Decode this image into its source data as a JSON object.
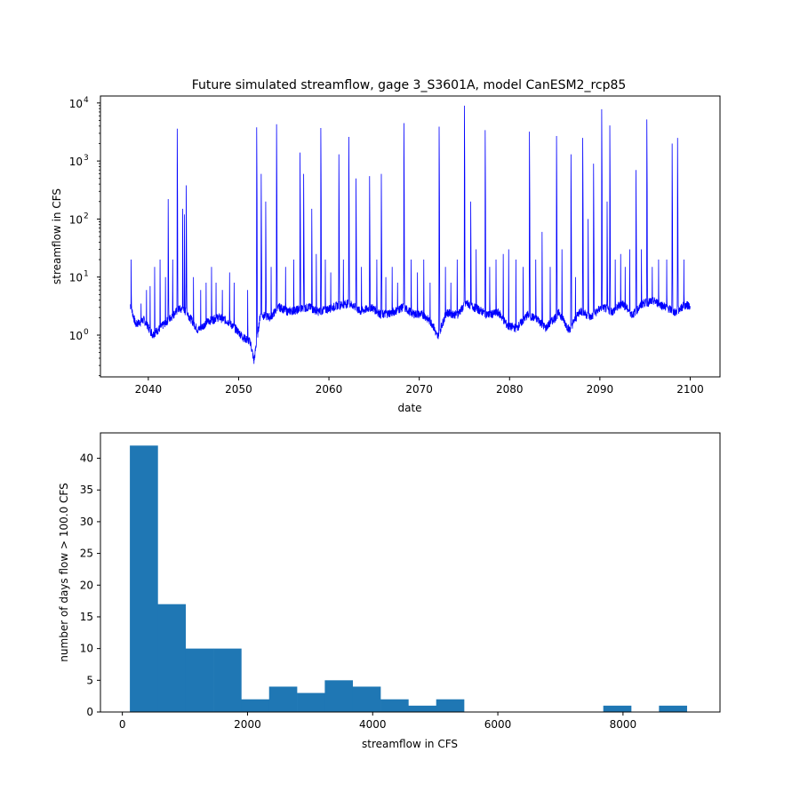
{
  "chart_data": [
    {
      "type": "line",
      "title": "Future simulated streamflow, gage 3_S3601A, model CanESM2_rcp85",
      "xlabel": "date",
      "ylabel": "streamflow in CFS",
      "yscale": "log",
      "x_ticks": [
        "2040",
        "2050",
        "2060",
        "2070",
        "2080",
        "2090",
        "2100"
      ],
      "y_ticks": [
        "10",
        "10",
        "10",
        "10",
        "10"
      ],
      "y_tick_exponents": [
        "0",
        "1",
        "2",
        "3",
        "4"
      ],
      "xlim": [
        2034.7,
        2103.3
      ],
      "ylim_log10": [
        -0.72,
        4.12
      ],
      "line_color": "#0000ff",
      "grid": false,
      "baseline": [
        [
          2038.0,
          3.3
        ],
        [
          2038.6,
          1.5
        ],
        [
          2039.5,
          1.8
        ],
        [
          2040.5,
          1.0
        ],
        [
          2041.3,
          1.3
        ],
        [
          2042.5,
          2.0
        ],
        [
          2043.4,
          2.8
        ],
        [
          2044.2,
          2.5
        ],
        [
          2045.5,
          1.2
        ],
        [
          2046.6,
          1.7
        ],
        [
          2047.8,
          2.0
        ],
        [
          2048.8,
          1.7
        ],
        [
          2049.8,
          1.2
        ],
        [
          2050.5,
          0.9
        ],
        [
          2051.3,
          0.75
        ],
        [
          2051.7,
          0.35
        ],
        [
          2052.4,
          2.2
        ],
        [
          2053.5,
          2.0
        ],
        [
          2054.5,
          3.0
        ],
        [
          2055.5,
          2.5
        ],
        [
          2056.6,
          2.7
        ],
        [
          2057.8,
          3.0
        ],
        [
          2058.8,
          2.5
        ],
        [
          2060.0,
          2.8
        ],
        [
          2061.0,
          3.2
        ],
        [
          2062.3,
          3.5
        ],
        [
          2063.5,
          2.5
        ],
        [
          2064.7,
          3.0
        ],
        [
          2065.8,
          2.2
        ],
        [
          2067.0,
          2.4
        ],
        [
          2068.2,
          3.0
        ],
        [
          2069.3,
          2.3
        ],
        [
          2070.5,
          2.2
        ],
        [
          2071.5,
          1.5
        ],
        [
          2072.0,
          0.9
        ],
        [
          2073.0,
          2.4
        ],
        [
          2074.2,
          2.2
        ],
        [
          2075.2,
          3.5
        ],
        [
          2076.4,
          2.8
        ],
        [
          2077.6,
          2.2
        ],
        [
          2078.8,
          2.4
        ],
        [
          2079.8,
          1.4
        ],
        [
          2080.8,
          1.3
        ],
        [
          2082.0,
          2.2
        ],
        [
          2083.2,
          1.8
        ],
        [
          2084.0,
          1.3
        ],
        [
          2085.5,
          2.4
        ],
        [
          2086.6,
          1.2
        ],
        [
          2087.8,
          2.6
        ],
        [
          2089.0,
          2.0
        ],
        [
          2090.2,
          3.0
        ],
        [
          2091.4,
          2.5
        ],
        [
          2092.5,
          3.5
        ],
        [
          2093.6,
          2.2
        ],
        [
          2094.8,
          3.5
        ],
        [
          2096.0,
          3.8
        ],
        [
          2097.3,
          3.0
        ],
        [
          2098.4,
          2.4
        ],
        [
          2099.3,
          3.2
        ],
        [
          2100.0,
          3.2
        ]
      ],
      "peaks": [
        [
          2038.1,
          20
        ],
        [
          2039.2,
          3.5
        ],
        [
          2039.8,
          6
        ],
        [
          2040.2,
          7
        ],
        [
          2040.7,
          15
        ],
        [
          2041.3,
          20
        ],
        [
          2041.9,
          10
        ],
        [
          2042.2,
          220
        ],
        [
          2042.7,
          20
        ],
        [
          2043.2,
          3600
        ],
        [
          2043.8,
          150
        ],
        [
          2044.0,
          120
        ],
        [
          2044.2,
          380
        ],
        [
          2045.0,
          10
        ],
        [
          2045.8,
          6
        ],
        [
          2046.4,
          8
        ],
        [
          2047.0,
          15
        ],
        [
          2047.5,
          8
        ],
        [
          2048.2,
          6
        ],
        [
          2049.0,
          12
        ],
        [
          2049.5,
          8
        ],
        [
          2051.0,
          6
        ],
        [
          2052.0,
          3800
        ],
        [
          2052.5,
          600
        ],
        [
          2053.0,
          200
        ],
        [
          2053.6,
          15
        ],
        [
          2054.2,
          4300
        ],
        [
          2055.2,
          15
        ],
        [
          2056.1,
          20
        ],
        [
          2056.8,
          1400
        ],
        [
          2057.2,
          600
        ],
        [
          2058.1,
          150
        ],
        [
          2058.6,
          25
        ],
        [
          2059.1,
          3700
        ],
        [
          2059.6,
          20
        ],
        [
          2060.2,
          12
        ],
        [
          2061.1,
          1300
        ],
        [
          2061.6,
          20
        ],
        [
          2062.2,
          2600
        ],
        [
          2063.0,
          500
        ],
        [
          2063.6,
          15
        ],
        [
          2064.5,
          550
        ],
        [
          2065.3,
          20
        ],
        [
          2065.8,
          600
        ],
        [
          2066.3,
          10
        ],
        [
          2067.0,
          15
        ],
        [
          2067.6,
          8
        ],
        [
          2068.3,
          4500
        ],
        [
          2069.1,
          20
        ],
        [
          2069.8,
          12
        ],
        [
          2070.5,
          20
        ],
        [
          2071.2,
          8
        ],
        [
          2072.2,
          3900
        ],
        [
          2072.9,
          15
        ],
        [
          2073.5,
          8
        ],
        [
          2074.2,
          20
        ],
        [
          2075.0,
          9000
        ],
        [
          2075.7,
          200
        ],
        [
          2076.3,
          30
        ],
        [
          2077.3,
          3400
        ],
        [
          2077.8,
          15
        ],
        [
          2078.5,
          20
        ],
        [
          2079.3,
          25
        ],
        [
          2079.9,
          30
        ],
        [
          2080.7,
          20
        ],
        [
          2081.5,
          15
        ],
        [
          2082.2,
          3200
        ],
        [
          2082.9,
          20
        ],
        [
          2083.6,
          60
        ],
        [
          2084.5,
          15
        ],
        [
          2085.2,
          2700
        ],
        [
          2085.8,
          30
        ],
        [
          2086.8,
          1300
        ],
        [
          2087.3,
          10
        ],
        [
          2088.1,
          2500
        ],
        [
          2088.7,
          100
        ],
        [
          2089.3,
          900
        ],
        [
          2090.2,
          7800
        ],
        [
          2090.8,
          200
        ],
        [
          2091.1,
          4100
        ],
        [
          2091.7,
          20
        ],
        [
          2092.3,
          25
        ],
        [
          2092.8,
          15
        ],
        [
          2093.3,
          30
        ],
        [
          2094.0,
          700
        ],
        [
          2094.6,
          30
        ],
        [
          2095.2,
          5200
        ],
        [
          2095.8,
          15
        ],
        [
          2096.5,
          20
        ],
        [
          2097.4,
          20
        ],
        [
          2098.0,
          2000
        ],
        [
          2098.6,
          2500
        ],
        [
          2099.3,
          20
        ]
      ]
    },
    {
      "type": "bar",
      "subtype": "histogram",
      "xlabel": "streamflow in CFS",
      "ylabel": "number of days flow > 100.0 CFS",
      "x_ticks": [
        "0",
        "2000",
        "4000",
        "6000",
        "8000"
      ],
      "x_tick_values": [
        0,
        2000,
        4000,
        6000,
        8000
      ],
      "y_ticks": [
        "0",
        "5",
        "10",
        "15",
        "20",
        "25",
        "30",
        "35",
        "40"
      ],
      "y_tick_values": [
        0,
        5,
        10,
        15,
        20,
        25,
        30,
        35,
        40
      ],
      "xlim": [
        -350,
        9550
      ],
      "ylim": [
        0,
        44
      ],
      "bar_color": "#1f77b4",
      "grid": false,
      "bin_edges": [
        120,
        565,
        1010,
        1455,
        1900,
        2345,
        2790,
        3235,
        3680,
        4125,
        4570,
        5015,
        5460,
        5905,
        6350,
        6795,
        7240,
        7685,
        8130,
        8575,
        9020
      ],
      "counts": [
        42,
        17,
        10,
        10,
        2,
        4,
        3,
        5,
        4,
        2,
        1,
        2,
        0,
        0,
        0,
        0,
        0,
        1,
        0,
        1
      ]
    }
  ]
}
